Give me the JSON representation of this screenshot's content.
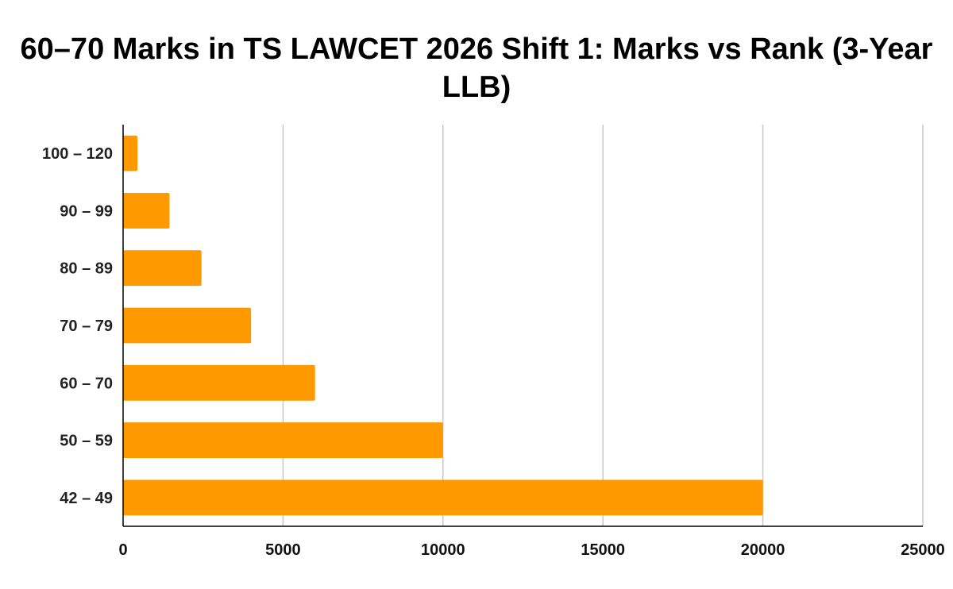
{
  "chart_data": {
    "type": "bar",
    "orientation": "horizontal",
    "title": "60–70 Marks in TS LAWCET 2026 Shift 1: Marks vs Rank (3-Year LLB)",
    "xlabel": "",
    "ylabel": "",
    "categories": [
      "100 – 120",
      "90 – 99",
      "80 – 89",
      "70 – 79",
      "60 – 70",
      "50 – 59",
      "42 – 49"
    ],
    "values": [
      450,
      1450,
      2450,
      4000,
      6000,
      10000,
      20000
    ],
    "xlim": [
      0,
      25000
    ],
    "x_ticks": [
      0,
      5000,
      10000,
      15000,
      20000,
      25000
    ],
    "x_tick_labels": [
      "0",
      "5000",
      "10000",
      "15000",
      "20000",
      "25000"
    ],
    "grid": "vertical",
    "legend": "none",
    "bar_color": "#ff9900"
  }
}
